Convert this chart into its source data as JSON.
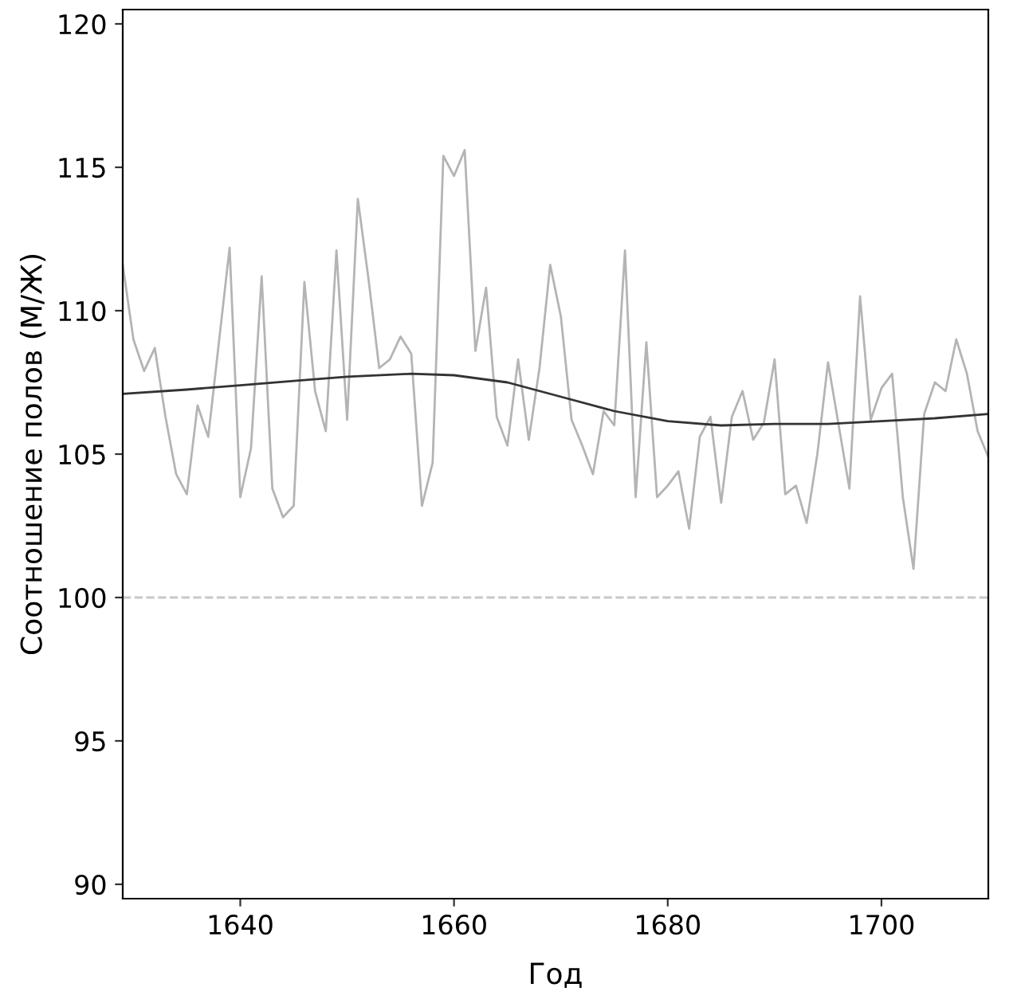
{
  "chart_data": {
    "type": "line",
    "xlabel": "Год",
    "ylabel": "Соотношение полов (М/Ж)",
    "xlim": [
      1629,
      1710
    ],
    "xticks": [
      1640,
      1660,
      1680,
      1700
    ],
    "ylim": [
      89.5,
      120.5
    ],
    "yticks": [
      90,
      95,
      100,
      105,
      110,
      115,
      120
    ],
    "grid": false,
    "legend": false,
    "marker": "none",
    "line_style": "solid",
    "ref_lines": [
      {
        "axis": "y",
        "value": 100,
        "color": "#c8c8c8",
        "line_style": "dashed"
      }
    ],
    "series": [
      {
        "color": "#b4b4b4",
        "x": [
          1629,
          1630,
          1631,
          1632,
          1633,
          1634,
          1635,
          1636,
          1637,
          1638,
          1639,
          1640,
          1641,
          1642,
          1643,
          1644,
          1645,
          1646,
          1647,
          1648,
          1649,
          1650,
          1651,
          1652,
          1653,
          1654,
          1655,
          1656,
          1657,
          1658,
          1659,
          1660,
          1661,
          1662,
          1663,
          1664,
          1665,
          1666,
          1667,
          1668,
          1669,
          1670,
          1671,
          1672,
          1673,
          1674,
          1675,
          1676,
          1677,
          1678,
          1679,
          1680,
          1681,
          1682,
          1683,
          1684,
          1685,
          1686,
          1687,
          1688,
          1689,
          1690,
          1691,
          1692,
          1693,
          1694,
          1695,
          1696,
          1697,
          1698,
          1699,
          1700,
          1701,
          1702,
          1703,
          1704,
          1705,
          1706,
          1707,
          1708,
          1709,
          1710
        ],
        "values": [
          111.6,
          109.0,
          107.9,
          108.7,
          106.3,
          104.3,
          103.6,
          106.7,
          105.6,
          108.9,
          112.2,
          103.5,
          105.2,
          111.2,
          103.8,
          102.8,
          103.2,
          111.0,
          107.2,
          105.8,
          112.1,
          106.2,
          113.9,
          111.1,
          108.0,
          108.3,
          109.1,
          108.5,
          103.2,
          104.7,
          115.4,
          114.7,
          115.6,
          108.6,
          110.8,
          106.3,
          105.3,
          108.3,
          105.5,
          108.0,
          111.6,
          109.8,
          106.2,
          105.3,
          104.3,
          106.5,
          106.0,
          112.1,
          103.5,
          108.9,
          103.5,
          103.9,
          104.4,
          102.4,
          105.6,
          106.3,
          103.3,
          106.3,
          107.2,
          105.5,
          106.1,
          108.3,
          103.6,
          103.9,
          102.6,
          105.0,
          108.2,
          106.0,
          103.8,
          110.5,
          106.2,
          107.3,
          107.8,
          103.5,
          101.0,
          106.4,
          107.5,
          107.2,
          109.0,
          107.8,
          105.8,
          104.9
        ]
      },
      {
        "color": "#333333",
        "x": [
          1629,
          1635,
          1640,
          1645,
          1650,
          1656,
          1660,
          1665,
          1670,
          1675,
          1680,
          1685,
          1690,
          1695,
          1700,
          1705,
          1710
        ],
        "values": [
          107.1,
          107.25,
          107.4,
          107.55,
          107.7,
          107.8,
          107.75,
          107.5,
          107.0,
          106.5,
          106.15,
          106.0,
          106.05,
          106.05,
          106.15,
          106.25,
          106.4
        ]
      }
    ]
  }
}
